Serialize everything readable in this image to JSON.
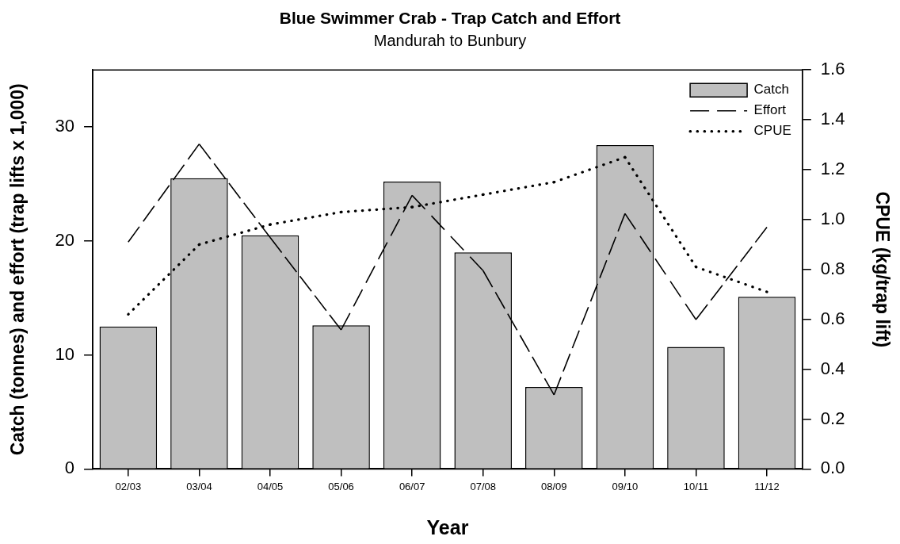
{
  "chart_data": {
    "type": "bar",
    "title": "Blue Swimmer Crab - Trap Catch and Effort",
    "subtitle": "Mandurah to Bunbury",
    "xlabel": "Year",
    "ylabel": "Catch (tonnes) and effort (trap lifts x 1,000)",
    "y2label": "CPUE (kg/trap lift)",
    "categories": [
      "02/03",
      "03/04",
      "04/05",
      "05/06",
      "06/07",
      "07/08",
      "08/09",
      "09/10",
      "10/11",
      "11/12"
    ],
    "series": [
      {
        "name": "Catch",
        "type": "bar",
        "color": "#bfbfbf",
        "values": [
          12.5,
          25.5,
          20.5,
          12.6,
          25.2,
          19.0,
          7.2,
          28.4,
          10.7,
          15.1
        ]
      },
      {
        "name": "Effort",
        "type": "line",
        "color": "#000000",
        "line_style": "dashed",
        "values": [
          19.9,
          28.5,
          20.3,
          12.2,
          24.0,
          17.4,
          6.5,
          22.4,
          13.1,
          21.2
        ]
      },
      {
        "name": "CPUE",
        "type": "line",
        "color": "#000000",
        "line_style": "dotted",
        "axis": "y2",
        "values": [
          0.62,
          0.9,
          0.98,
          1.03,
          1.05,
          1.1,
          1.15,
          1.25,
          0.81,
          0.71
        ]
      }
    ],
    "ylim": [
      0,
      35
    ],
    "yticks": [
      0,
      10,
      20,
      30
    ],
    "y2lim": [
      0,
      1.6
    ],
    "y2ticks": [
      {
        "value": 0,
        "label": "0.0"
      },
      0.2,
      0.4,
      0.6,
      0.8,
      {
        "value": 1,
        "label": "1.0"
      },
      1.2,
      1.4,
      1.6
    ],
    "legend": "top right",
    "marker": "none"
  }
}
